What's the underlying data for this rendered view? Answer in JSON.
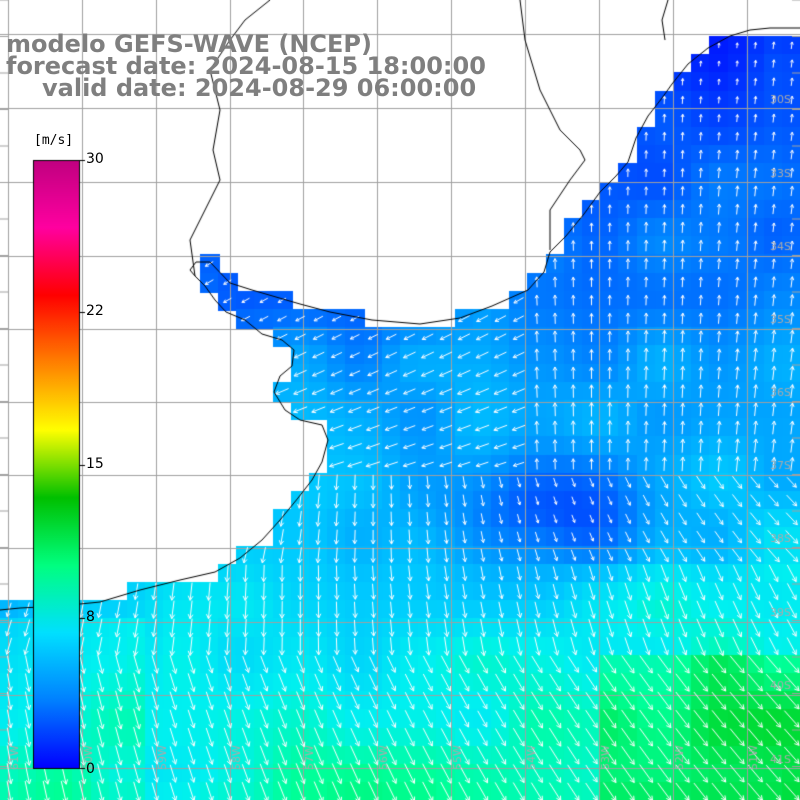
{
  "title": {
    "model": "modelo GEFS-WAVE (NCEP)",
    "forecast": "forecast date: 2024-08-15 18:00:00",
    "valid": "valid date: 2024-08-29 06:00:00"
  },
  "colorbar": {
    "unit": "[m/s]",
    "ticks": [
      "30",
      "22",
      "15",
      "8",
      "0"
    ],
    "colors": [
      "#0000ff",
      "#0080ff",
      "#00e0ff",
      "#00ff80",
      "#00c000",
      "#ffff00",
      "#ff8000",
      "#ff0000",
      "#ff00a0",
      "#c00080"
    ]
  },
  "map": {
    "land_color": "#ffffff",
    "grid_color": "#999999",
    "coast_color": "#000000",
    "arrow_color": "#ffffff",
    "lon_labels": [
      "61W",
      "60W",
      "59W",
      "58W",
      "57W",
      "56W",
      "55W",
      "54W",
      "53W",
      "52W",
      "51W"
    ],
    "lat_labels": [
      "30S",
      "33S",
      "34S",
      "35S",
      "36S",
      "37S",
      "38S",
      "39S",
      "40S",
      "41S"
    ]
  }
}
